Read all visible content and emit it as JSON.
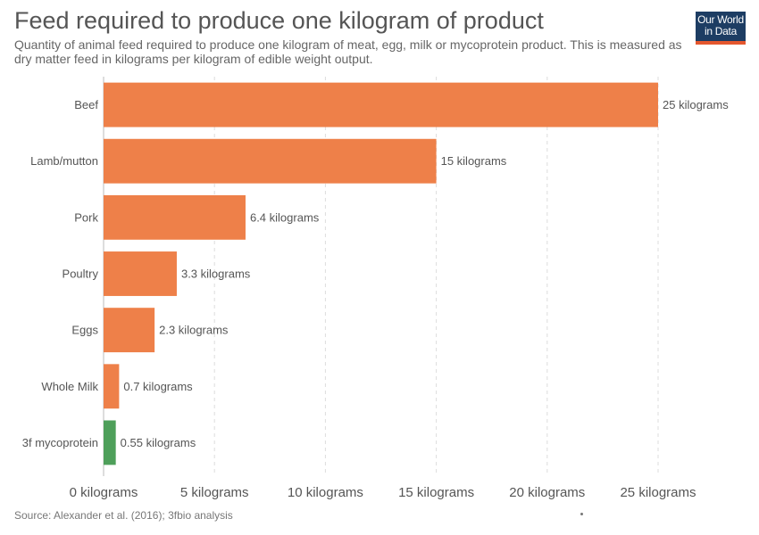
{
  "header": {
    "title": "Feed required to produce one kilogram of product",
    "subtitle": "Quantity of animal feed required to produce one kilogram of meat, egg, milk or mycoprotein product. This is measured as dry matter feed in kilograms per kilogram of edible weight output."
  },
  "logo": {
    "line1": "Our World",
    "line2": "in Data",
    "bg_color": "#1d3d63",
    "accent_color": "#e4572e"
  },
  "footer": {
    "source": "Source: Alexander et al. (2016); 3fbio analysis"
  },
  "chart_data": {
    "type": "bar",
    "orientation": "horizontal",
    "categories": [
      "Beef",
      "Lamb/mutton",
      "Pork",
      "Poultry",
      "Eggs",
      "Whole Milk",
      "3f mycoprotein"
    ],
    "values": [
      25,
      15,
      6.4,
      3.3,
      2.3,
      0.7,
      0.55
    ],
    "value_labels": [
      "25 kilograms",
      "15 kilograms",
      "6.4 kilograms",
      "3.3 kilograms",
      "2.3 kilograms",
      "0.7 kilograms",
      "0.55 kilograms"
    ],
    "colors": [
      "#ee8049",
      "#ee8049",
      "#ee8049",
      "#ee8049",
      "#ee8049",
      "#ee8049",
      "#4e9f5a"
    ],
    "xlim": [
      0,
      25
    ],
    "x_ticks": [
      0,
      5,
      10,
      15,
      20,
      25
    ],
    "x_tick_labels": [
      "0 kilograms",
      "5 kilograms",
      "10 kilograms",
      "15 kilograms",
      "20 kilograms",
      "25 kilograms"
    ],
    "grid": true,
    "legend": "none"
  }
}
